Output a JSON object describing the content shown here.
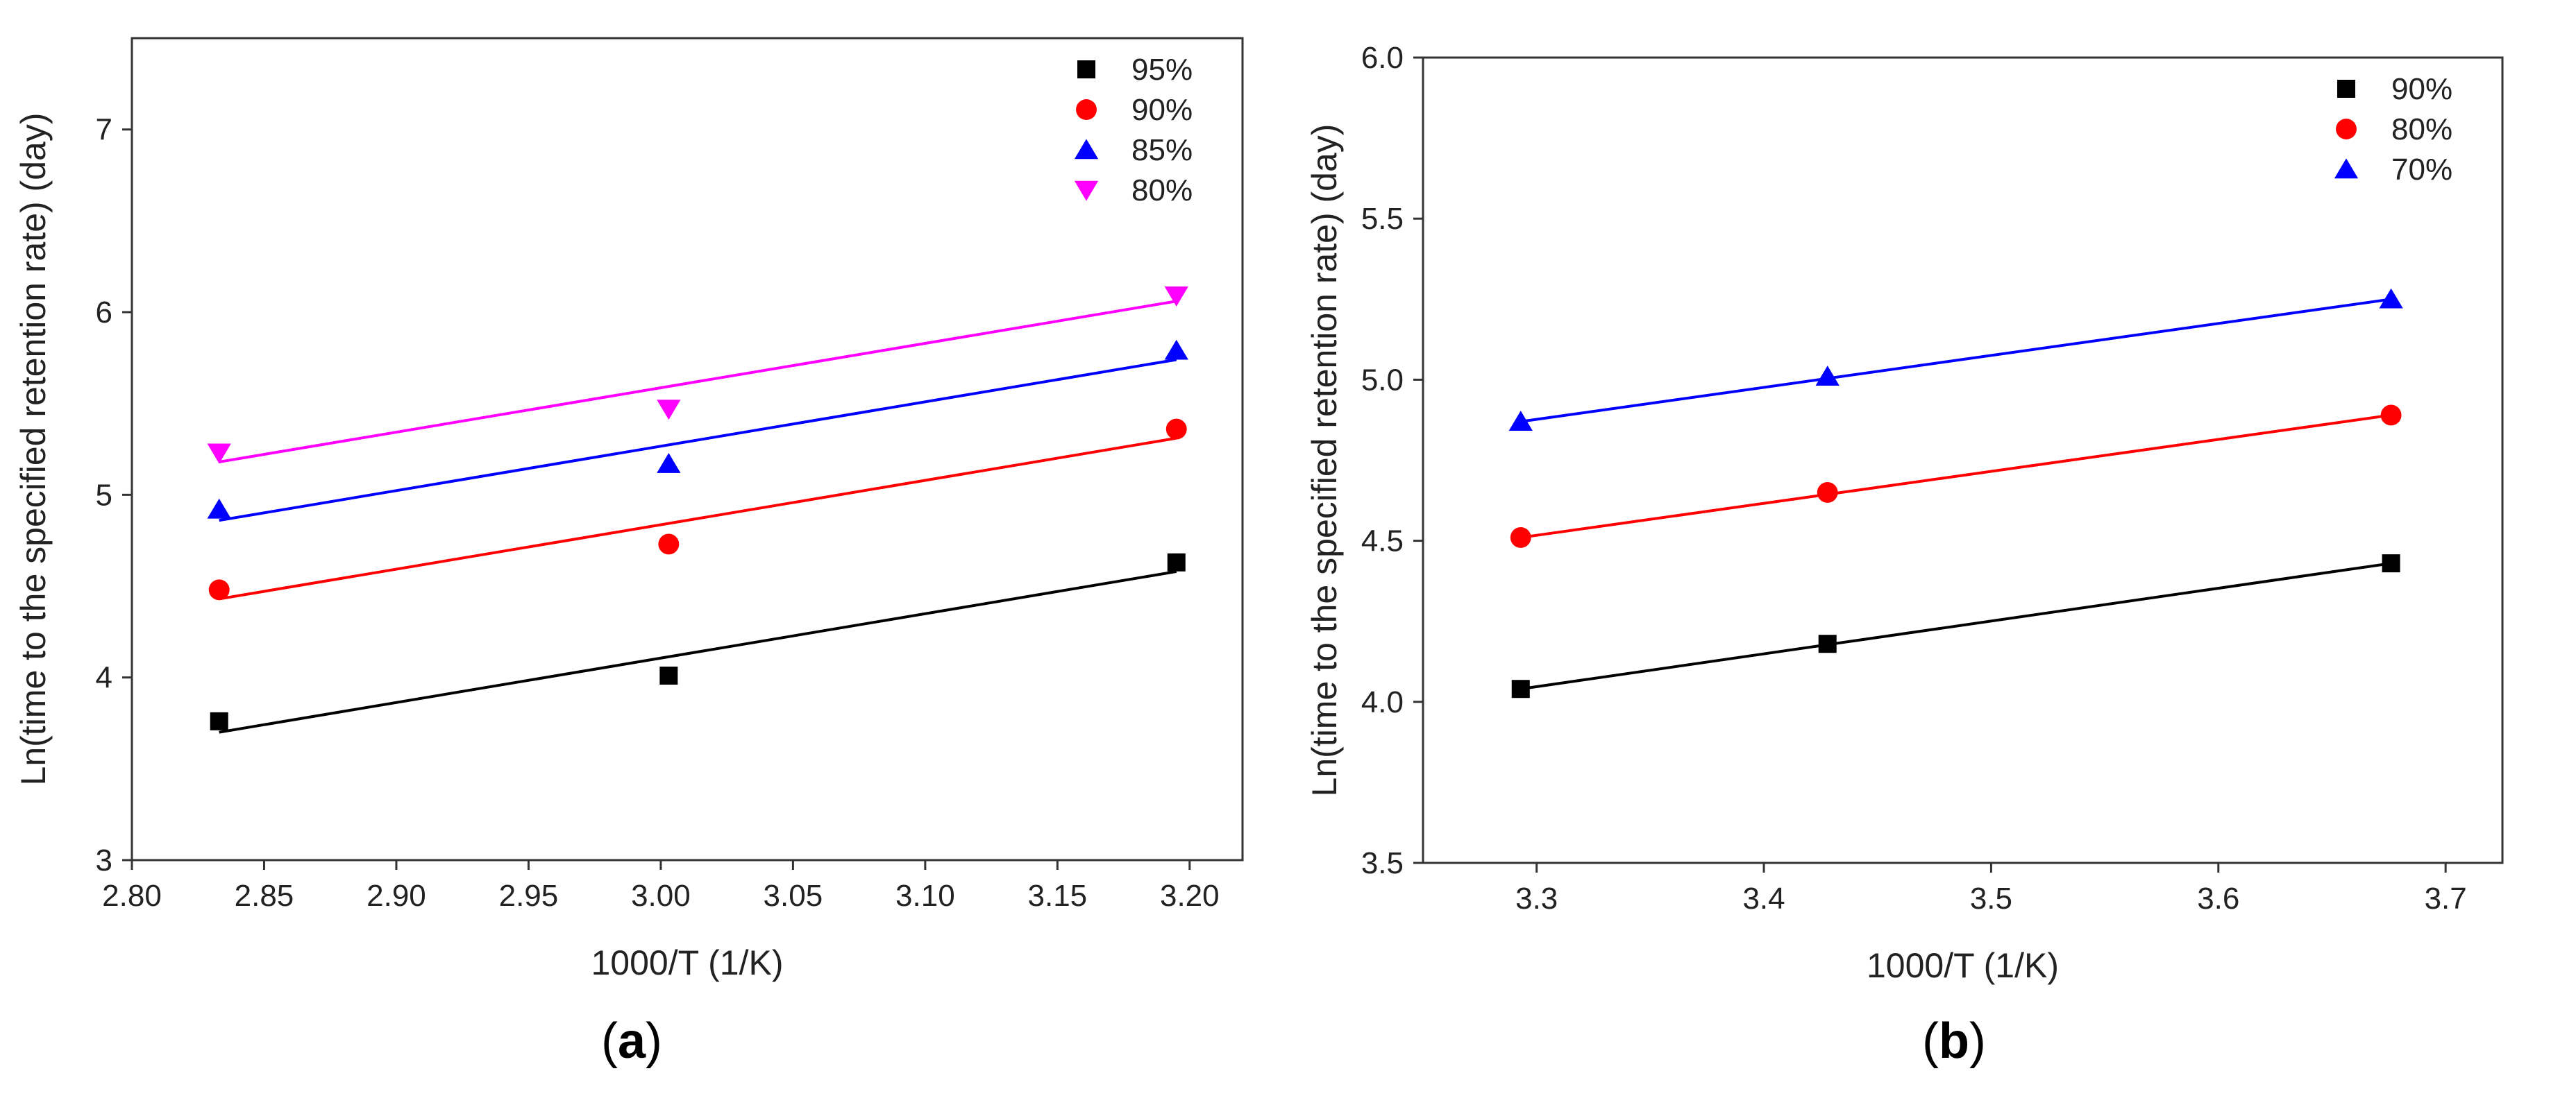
{
  "chart_data": [
    {
      "type": "scatter",
      "panel_label": "a",
      "xlabel": "1000/T (1/K)",
      "ylabel": "Ln(time to the specified retention rate) (day)",
      "xlim": [
        2.8,
        3.22
      ],
      "ylim": [
        3,
        7.5
      ],
      "xticks": [
        2.8,
        2.85,
        2.9,
        2.95,
        3.0,
        3.05,
        3.1,
        3.15,
        3.2
      ],
      "xtick_labels": [
        "2.80",
        "2.85",
        "2.90",
        "2.95",
        "3.00",
        "3.05",
        "3.10",
        "3.15",
        "3.20"
      ],
      "yticks": [
        3,
        4,
        5,
        6,
        7
      ],
      "ytick_labels": [
        "3",
        "4",
        "5",
        "6",
        "7"
      ],
      "legend_position": "top-right",
      "series": [
        {
          "name": "95%",
          "marker": "square",
          "color": "#000000",
          "x": [
            2.833,
            3.003,
            3.195
          ],
          "y": [
            3.76,
            4.01,
            4.63
          ],
          "fit": [
            3.7,
            4.58
          ]
        },
        {
          "name": "90%",
          "marker": "circle",
          "color": "#ff0000",
          "x": [
            2.833,
            3.003,
            3.195
          ],
          "y": [
            4.48,
            4.73,
            5.36
          ],
          "fit": [
            4.43,
            5.31
          ]
        },
        {
          "name": "85%",
          "marker": "triangle-up",
          "color": "#0000ff",
          "x": [
            2.833,
            3.003,
            3.195
          ],
          "y": [
            4.92,
            5.17,
            5.79
          ],
          "fit": [
            4.86,
            5.74
          ]
        },
        {
          "name": "80%",
          "marker": "triangle-down",
          "color": "#ff00ff",
          "x": [
            2.833,
            3.003,
            3.195
          ],
          "y": [
            5.23,
            5.47,
            6.09
          ],
          "fit": [
            5.18,
            6.06
          ]
        }
      ]
    },
    {
      "type": "scatter",
      "panel_label": "b",
      "xlabel": "1000/T (1/K)",
      "ylabel": "Ln(time to the specified retention rate) (day)",
      "xlim": [
        3.25,
        3.725
      ],
      "ylim": [
        3.5,
        6.0
      ],
      "xticks": [
        3.3,
        3.4,
        3.5,
        3.6,
        3.7
      ],
      "xtick_labels": [
        "3.3",
        "3.4",
        "3.5",
        "3.6",
        "3.7"
      ],
      "yticks": [
        3.5,
        4.0,
        4.5,
        5.0,
        5.5,
        6.0
      ],
      "ytick_labels": [
        "3.5",
        "4.0",
        "4.5",
        "5.0",
        "5.5",
        "6.0"
      ],
      "legend_position": "top-right",
      "series": [
        {
          "name": "90%",
          "marker": "square",
          "color": "#000000",
          "x": [
            3.293,
            3.428,
            3.676
          ],
          "y": [
            4.04,
            4.18,
            4.43
          ],
          "fit": [
            4.04,
            4.43
          ]
        },
        {
          "name": "80%",
          "marker": "circle",
          "color": "#ff0000",
          "x": [
            3.293,
            3.428,
            3.676
          ],
          "y": [
            4.51,
            4.65,
            4.89
          ],
          "fit": [
            4.51,
            4.89
          ]
        },
        {
          "name": "70%",
          "marker": "triangle-up",
          "color": "#0000ff",
          "x": [
            3.293,
            3.428,
            3.676
          ],
          "y": [
            4.87,
            5.01,
            5.25
          ],
          "fit": [
            4.87,
            5.25
          ]
        }
      ]
    }
  ]
}
